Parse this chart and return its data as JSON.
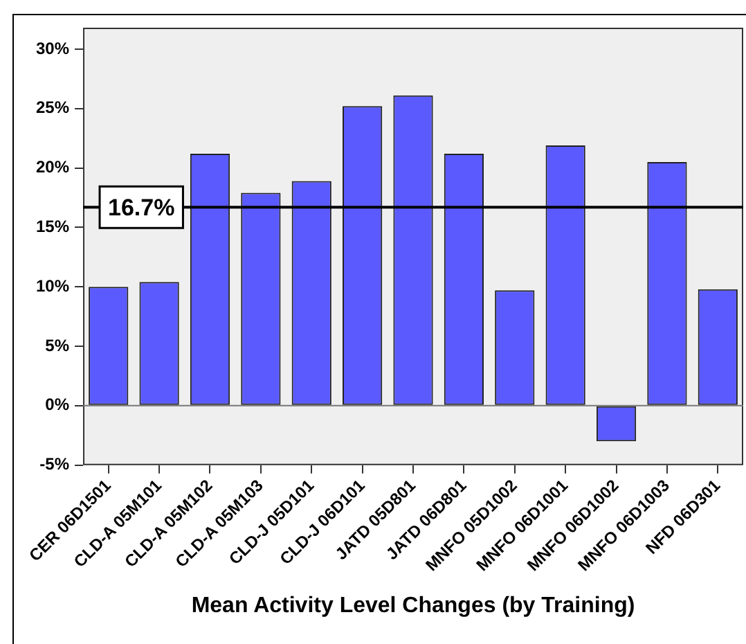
{
  "chart_data": {
    "type": "bar",
    "xlabel": "Mean Activity Level Changes (by Training)",
    "categories": [
      "CER 06D1501",
      "CLD-A 05M101",
      "CLD-A 05M102",
      "CLD-A 05M103",
      "CLD-J 05D101",
      "CLD-J 06D101",
      "JATD 05D801",
      "JATD 06D801",
      "MNFO 05D1002",
      "MNFO 06D1001",
      "MNFO 06D1002",
      "MNFO 06D1003",
      "NFD 06D301"
    ],
    "values": [
      10.0,
      10.4,
      21.2,
      17.9,
      18.9,
      25.2,
      26.1,
      21.2,
      9.7,
      21.9,
      -3.0,
      20.5,
      9.8
    ],
    "color": "#5a5aff",
    "ylim": [
      -5,
      31.8
    ],
    "yticks": [
      {
        "value": -5,
        "label": "-5%"
      },
      {
        "value": 0,
        "label": "0%"
      },
      {
        "value": 5,
        "label": "5%"
      },
      {
        "value": 10,
        "label": "10%"
      },
      {
        "value": 15,
        "label": "15%"
      },
      {
        "value": 20,
        "label": "20%"
      },
      {
        "value": 25,
        "label": "25%"
      },
      {
        "value": 30,
        "label": "30%"
      }
    ],
    "ref_lines": [
      {
        "axis": "y",
        "value": 0,
        "color": "#777777"
      },
      {
        "axis": "y",
        "value": 16.7,
        "label": "16.7%",
        "color": "#000000"
      }
    ],
    "grid": false,
    "legend": false
  }
}
